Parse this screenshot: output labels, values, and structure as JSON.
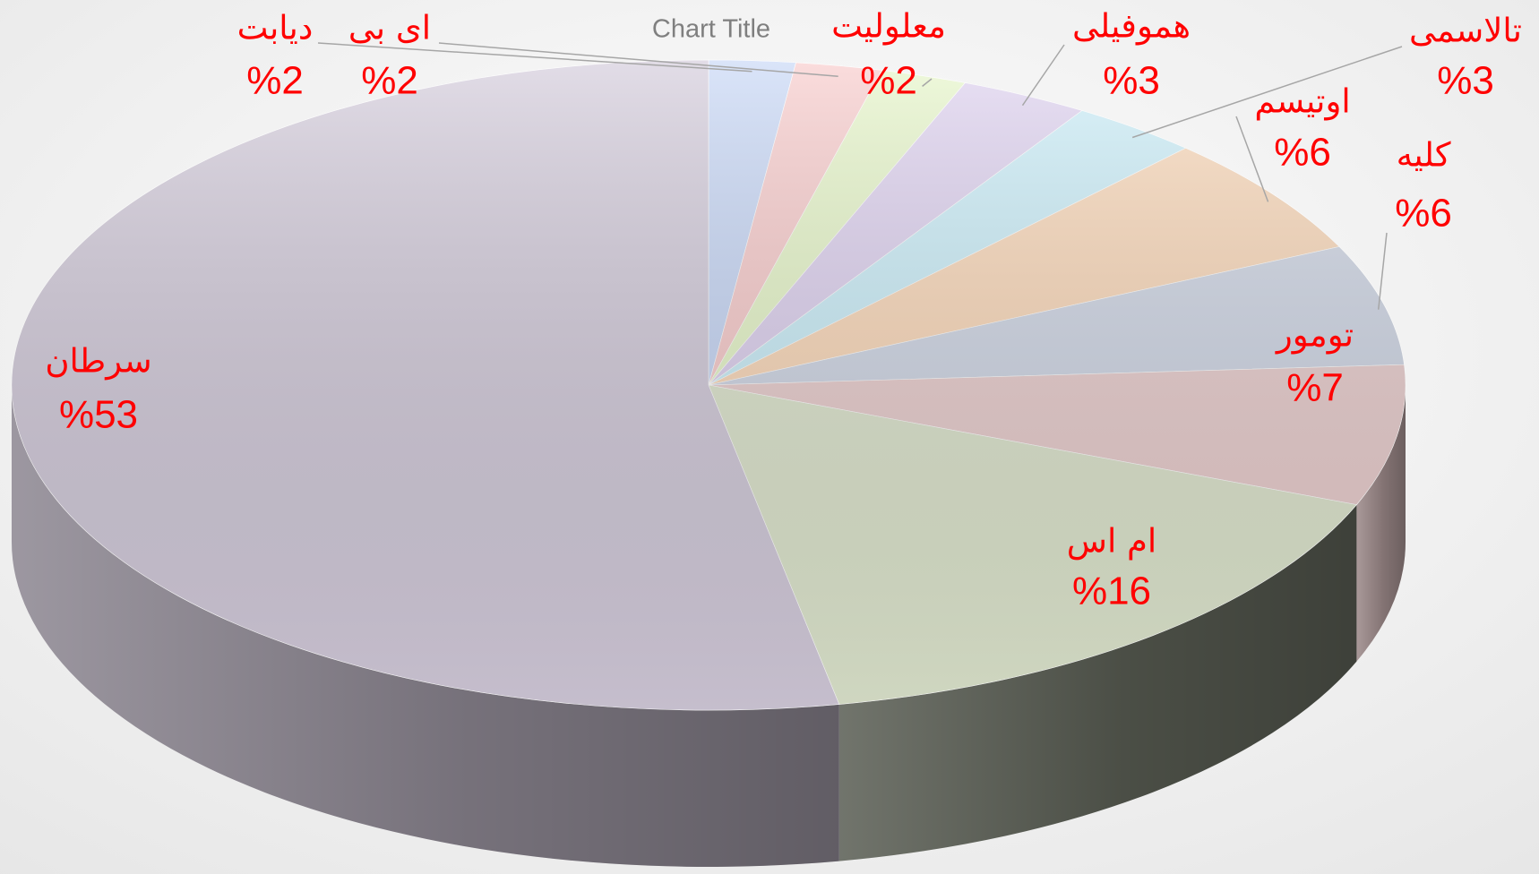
{
  "chart_data": {
    "type": "pie3d",
    "title": "Chart Title",
    "categories": [
      "دیابت",
      "ای بی",
      "معلولیت",
      "هموفیلی",
      "تالاسمی",
      "اوتیسم",
      "کلیه",
      "تومور",
      "ام اس",
      "سرطان"
    ],
    "values": [
      2,
      2,
      2,
      3,
      3,
      6,
      6,
      7,
      16,
      53
    ],
    "value_labels": [
      "%2",
      "%2",
      "%2",
      "%3",
      "%3",
      "%6",
      "%6",
      "%7",
      "%16",
      "%53"
    ],
    "colors": [
      "#c6d6f6",
      "#f8caca",
      "#e6f6c8",
      "#ddd0ef",
      "#caeef9",
      "#fbd8b8",
      "#cfd6e5",
      "#e9cdcd",
      "#dde5cd",
      "#d2cada"
    ]
  }
}
